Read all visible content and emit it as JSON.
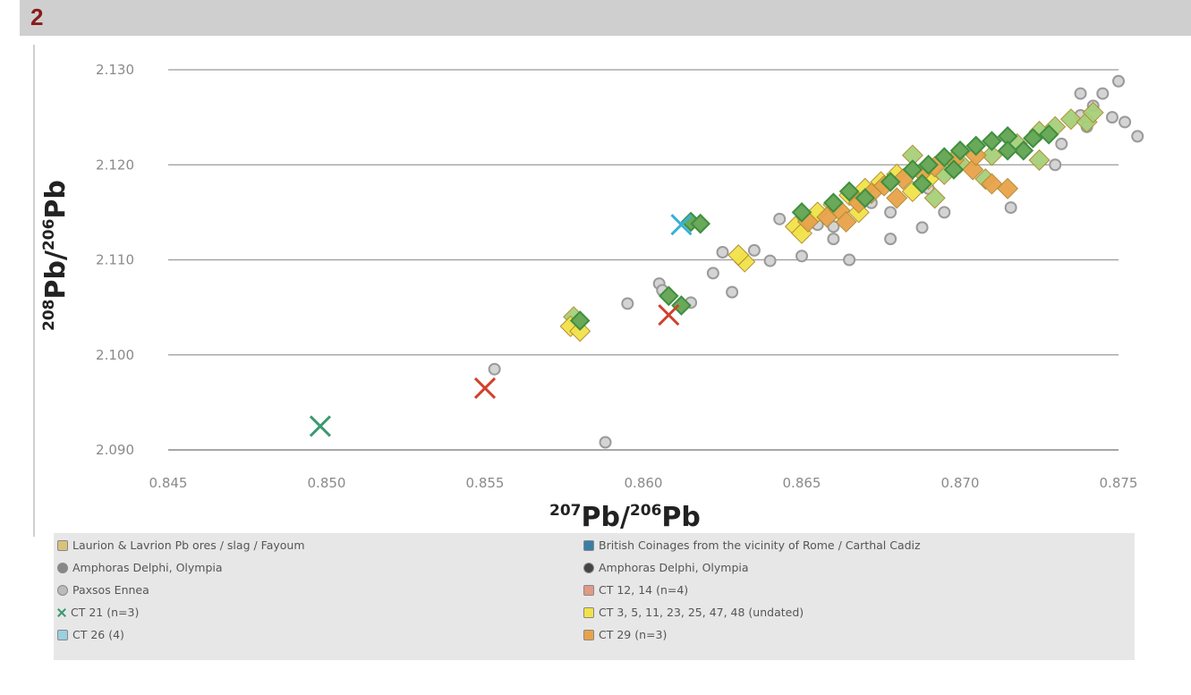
{
  "header": {
    "number": "2"
  },
  "chart_data": {
    "type": "scatter",
    "title": "",
    "xlabel": {
      "sup": "207",
      "text": "Pb/",
      "sup2": "206",
      "text2": "Pb"
    },
    "ylabel": {
      "sup": "208",
      "text": "Pb/",
      "sup2": "206",
      "text2": "Pb"
    },
    "xlim": [
      0.845,
      0.875
    ],
    "ylim": [
      2.09,
      2.13
    ],
    "x_ticks": [
      0.845,
      0.85,
      0.855,
      0.86,
      0.865,
      0.87,
      0.875
    ],
    "x_tick_labels": [
      "0.845",
      "0.850",
      "0.855",
      "0.860",
      "0.865",
      "0.870",
      "0.875"
    ],
    "y_ticks": [
      2.09,
      2.1,
      2.11,
      2.12,
      2.13
    ],
    "y_tick_labels": [
      "2.090",
      "2.100",
      "2.110",
      "2.120",
      "2.130"
    ],
    "grid": "horizontal",
    "legend_position": "bottom",
    "colors": {
      "gray_circle": "#9a9a9a",
      "green_diamond": "#3f8f3f",
      "light_green": "#a6d07a",
      "yellow": "#f2e24a",
      "orange": "#e8a34a",
      "red_cross": "#d0402a",
      "teal_cross": "#3a9a70",
      "cyan": "#38b0d8"
    },
    "legend": [
      {
        "label": "Laurion & Lavrion Pb ores / slag / Fayoum",
        "marker": "square",
        "color": "#d9c27a"
      },
      {
        "label": "British Coinages from the vicinity of Rome / Carthal Cadiz",
        "marker": "square",
        "color": "#3a7ea8"
      },
      {
        "label": "Amphoras Delphi, Olympia",
        "marker": "circle",
        "color": "#888888"
      },
      {
        "label": "Amphoras Delphi, Olympia",
        "marker": "circle",
        "color": "#444444"
      },
      {
        "label": "Paxsos Ennea",
        "marker": "circle",
        "color": "#bbbbbb"
      },
      {
        "label": "CT 12, 14 (n=4)",
        "marker": "square",
        "color": "#e09a86"
      },
      {
        "label": "CT 21 (n=3)",
        "marker": "cross",
        "color": "#3a9a70"
      },
      {
        "label": "CT 3, 5, 11, 23, 25, 47, 48 (undated)",
        "marker": "square",
        "color": "#f2e24a"
      },
      {
        "label": "CT 26 (4)",
        "marker": "square",
        "color": "#9ad0e0"
      },
      {
        "label": "CT 29 (n=3)",
        "marker": "square",
        "color": "#e8a34a"
      }
    ],
    "series": [
      {
        "name": "gray_circle",
        "marker": "circle",
        "color": "#9a9a9a",
        "points": [
          [
            0.8553,
            2.0985
          ],
          [
            0.8588,
            2.0908
          ],
          [
            0.8595,
            2.1054
          ],
          [
            0.8605,
            2.1075
          ],
          [
            0.8606,
            2.1068
          ],
          [
            0.8615,
            2.1055
          ],
          [
            0.8625,
            2.1108
          ],
          [
            0.8628,
            2.1066
          ],
          [
            0.8622,
            2.1086
          ],
          [
            0.8635,
            2.111
          ],
          [
            0.864,
            2.1099
          ],
          [
            0.865,
            2.1104
          ],
          [
            0.8643,
            2.1143
          ],
          [
            0.8655,
            2.1137
          ],
          [
            0.866,
            2.1122
          ],
          [
            0.8665,
            2.11
          ],
          [
            0.8678,
            2.1122
          ],
          [
            0.8688,
            2.1134
          ],
          [
            0.8695,
            2.115
          ],
          [
            0.8716,
            2.1155
          ],
          [
            0.873,
            2.12
          ],
          [
            0.8732,
            2.1222
          ],
          [
            0.8738,
            2.1252
          ],
          [
            0.874,
            2.124
          ],
          [
            0.8742,
            2.1262
          ],
          [
            0.8745,
            2.1275
          ],
          [
            0.8748,
            2.125
          ],
          [
            0.875,
            2.1288
          ],
          [
            0.8752,
            2.1245
          ],
          [
            0.8738,
            2.1275
          ],
          [
            0.8756,
            2.123
          ],
          [
            0.8678,
            2.115
          ],
          [
            0.866,
            2.1135
          ],
          [
            0.8672,
            2.116
          ],
          [
            0.869,
            2.1175
          ]
        ]
      },
      {
        "name": "green_diamond",
        "marker": "diamond",
        "color": "#3f8f3f",
        "points": [
          [
            0.858,
            2.1036
          ],
          [
            0.8608,
            2.1062
          ],
          [
            0.8612,
            2.1052
          ],
          [
            0.8615,
            2.114
          ],
          [
            0.8618,
            2.1138
          ],
          [
            0.865,
            2.115
          ],
          [
            0.866,
            2.116
          ],
          [
            0.8665,
            2.1172
          ],
          [
            0.867,
            2.1165
          ],
          [
            0.8678,
            2.1182
          ],
          [
            0.8685,
            2.1195
          ],
          [
            0.869,
            2.12
          ],
          [
            0.8695,
            2.1208
          ],
          [
            0.87,
            2.1215
          ],
          [
            0.8705,
            2.122
          ],
          [
            0.871,
            2.1225
          ],
          [
            0.8715,
            2.123
          ],
          [
            0.872,
            2.1215
          ],
          [
            0.8723,
            2.1228
          ],
          [
            0.8728,
            2.1232
          ],
          [
            0.8715,
            2.1215
          ],
          [
            0.8698,
            2.1195
          ],
          [
            0.8688,
            2.118
          ]
        ]
      },
      {
        "name": "light_green",
        "marker": "square",
        "color": "#a6d07a",
        "points": [
          [
            0.8578,
            2.104
          ],
          [
            0.8695,
            2.119
          ],
          [
            0.87,
            2.1202
          ],
          [
            0.871,
            2.121
          ],
          [
            0.8718,
            2.1222
          ],
          [
            0.8725,
            2.1235
          ],
          [
            0.873,
            2.124
          ],
          [
            0.8735,
            2.1248
          ],
          [
            0.874,
            2.1245
          ],
          [
            0.8742,
            2.1255
          ],
          [
            0.8725,
            2.1205
          ],
          [
            0.8708,
            2.1185
          ],
          [
            0.8692,
            2.1165
          ],
          [
            0.8685,
            2.121
          ]
        ]
      },
      {
        "name": "yellow",
        "marker": "square",
        "color": "#f2e24a",
        "points": [
          [
            0.8577,
            2.103
          ],
          [
            0.858,
            2.1025
          ],
          [
            0.8632,
            2.1098
          ],
          [
            0.863,
            2.1105
          ],
          [
            0.8648,
            2.1135
          ],
          [
            0.8652,
            2.1142
          ],
          [
            0.8655,
            2.115
          ],
          [
            0.866,
            2.1158
          ],
          [
            0.8665,
            2.1168
          ],
          [
            0.867,
            2.1175
          ],
          [
            0.8675,
            2.1182
          ],
          [
            0.868,
            2.119
          ],
          [
            0.865,
            2.1128
          ],
          [
            0.8668,
            2.115
          ],
          [
            0.8685,
            2.1172
          ],
          [
            0.869,
            2.1185
          ]
        ]
      },
      {
        "name": "orange",
        "marker": "square",
        "color": "#e8a34a",
        "points": [
          [
            0.8652,
            2.114
          ],
          [
            0.8658,
            2.1145
          ],
          [
            0.8662,
            2.1152
          ],
          [
            0.8668,
            2.116
          ],
          [
            0.8672,
            2.117
          ],
          [
            0.8676,
            2.1178
          ],
          [
            0.8682,
            2.1185
          ],
          [
            0.8688,
            2.1192
          ],
          [
            0.8692,
            2.1198
          ],
          [
            0.8698,
            2.1205
          ],
          [
            0.8704,
            2.1195
          ],
          [
            0.871,
            2.118
          ],
          [
            0.8715,
            2.1175
          ],
          [
            0.8705,
            2.121
          ],
          [
            0.868,
            2.1165
          ],
          [
            0.8664,
            2.114
          ]
        ]
      },
      {
        "name": "red_cross",
        "marker": "cross",
        "color": "#d0402a",
        "points": [
          [
            0.855,
            2.0965
          ],
          [
            0.8608,
            2.1042
          ]
        ]
      },
      {
        "name": "teal_cross",
        "marker": "cross",
        "color": "#3a9a70",
        "points": [
          [
            0.8498,
            2.0925
          ]
        ]
      },
      {
        "name": "cyan",
        "marker": "cross",
        "color": "#38b0d8",
        "points": [
          [
            0.8612,
            2.1137
          ]
        ]
      }
    ]
  }
}
